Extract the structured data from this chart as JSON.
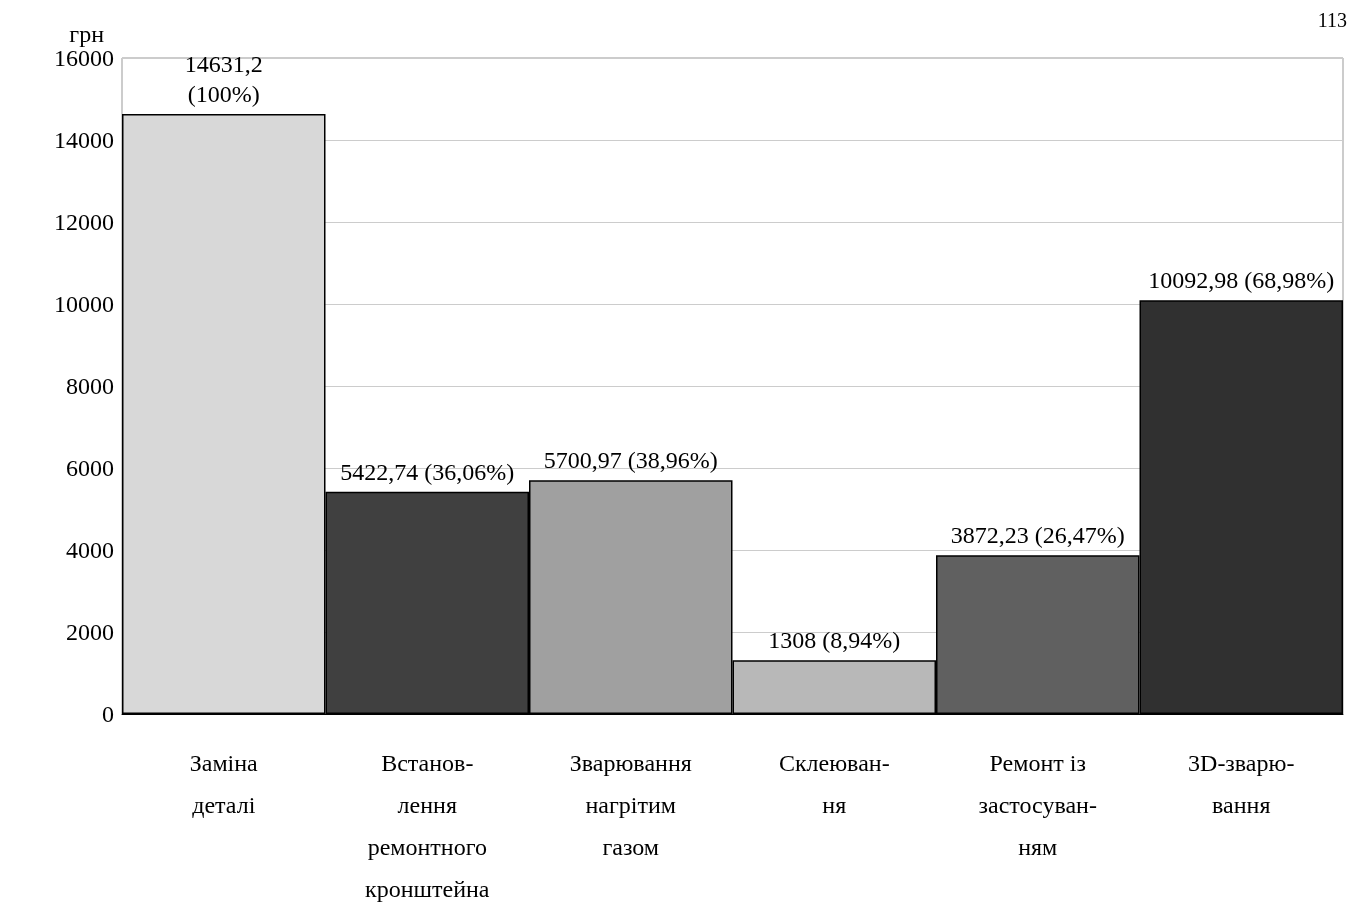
{
  "chart_data": {
    "type": "bar",
    "ylabel": "грн",
    "annotations": [
      "113"
    ],
    "categories": [
      "Заміна\nдеталі",
      "Встанов-\nлення\nремонтного\nкронштейна",
      "Зварювання\nнагрітим\nгазом",
      "Склеюван-\nня",
      "Ремонт із\nзастосуван-\nням",
      "3D-зварю-\nвання"
    ],
    "values": [
      14631.2,
      5422.74,
      5700.97,
      1308,
      3872.23,
      10092.98
    ],
    "value_labels": [
      "14631,2\n(100%)",
      "5422,74 (36,06%)",
      "5700,97 (38,96%)",
      "1308 (8,94%)",
      "3872,23 (26,47%)",
      "10092,98 (68,98%)"
    ],
    "colors": [
      "#d8d8d8",
      "#404040",
      "#a0a0a0",
      "#b8b8b8",
      "#606060",
      "#303030"
    ],
    "ylim": [
      0,
      16000
    ],
    "yticks": [
      0,
      2000,
      4000,
      6000,
      8000,
      10000,
      12000,
      14000,
      16000
    ],
    "grid": "y"
  }
}
